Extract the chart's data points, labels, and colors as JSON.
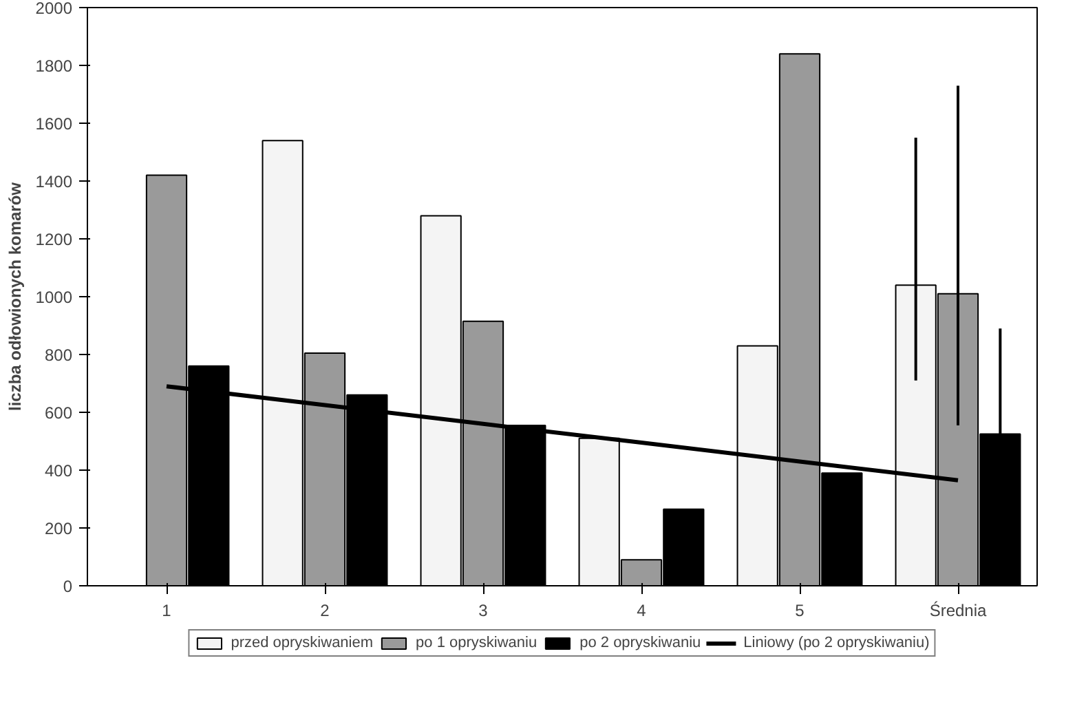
{
  "chart_data": {
    "type": "bar",
    "ylabel": "liczba odłowionych komarów",
    "categories": [
      "1",
      "2",
      "3",
      "4",
      "5",
      "Średnia"
    ],
    "series": [
      {
        "name": "przed opryskiwaniem",
        "color": "#f4f4f4",
        "values": [
          null,
          1540,
          1280,
          510,
          830,
          1040
        ],
        "errors": [
          null,
          null,
          null,
          null,
          null,
          [
            710,
            1550
          ]
        ]
      },
      {
        "name": "po 1 opryskiwaniu",
        "color": "#9a9a9a",
        "values": [
          1420,
          805,
          915,
          90,
          1840,
          1010
        ],
        "errors": [
          null,
          null,
          null,
          null,
          null,
          [
            555,
            1730
          ]
        ]
      },
      {
        "name": "po 2 opryskiwaniu",
        "color": "#000000",
        "values": [
          760,
          660,
          555,
          265,
          390,
          525
        ],
        "errors": [
          null,
          null,
          null,
          null,
          null,
          [
            525,
            890
          ]
        ]
      },
      {
        "name": "Liniowy (po 2 opryskiwaniu)",
        "type": "line",
        "color": "#000000",
        "values": [
          690,
          625,
          560,
          495,
          430,
          365
        ]
      }
    ],
    "ylim": [
      0,
      2000
    ],
    "yticks": [
      0,
      200,
      400,
      600,
      800,
      1000,
      1200,
      1400,
      1600,
      1800,
      2000
    ],
    "grid": false,
    "legend": "bottom",
    "line_style": "solid"
  }
}
